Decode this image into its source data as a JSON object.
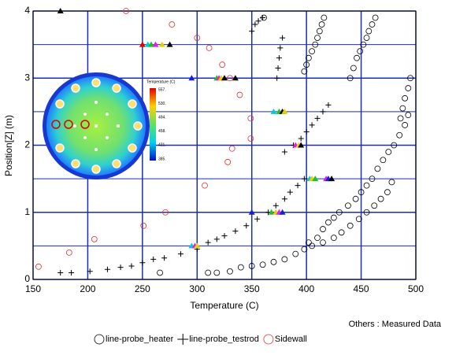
{
  "chart_data": {
    "type": "scatter",
    "x_label": "Temperature (C)",
    "y_label": "Position[Z] (m)",
    "xlim": [
      150,
      500
    ],
    "ylim": [
      0,
      4
    ],
    "xticks": [
      150,
      200,
      250,
      300,
      350,
      400,
      450,
      500
    ],
    "yticks": [
      0,
      1,
      2,
      3,
      4
    ],
    "minor_yticks": [
      0.5,
      1.5,
      2.5,
      3.5
    ],
    "grid": true,
    "grid_color": "#1a2fb0",
    "annotation": "Others : Measured Data",
    "series": [
      {
        "name": "line-probe_heater",
        "marker": "circle",
        "color": "#000000",
        "x": [
          266,
          310,
          318,
          330,
          340,
          350,
          360,
          370,
          380,
          390,
          398,
          405,
          415,
          425,
          432,
          440,
          448,
          455,
          462,
          468,
          474,
          478,
          402,
          410,
          415,
          420,
          425,
          430,
          438,
          445,
          450,
          455,
          460,
          465,
          470,
          475,
          480,
          485,
          490,
          493,
          361,
          416,
          414,
          412,
          410,
          408,
          405,
          402,
          400,
          398,
          463,
          460,
          457,
          455,
          452,
          449,
          446,
          443,
          440,
          495,
          493,
          490,
          488,
          486
        ],
        "values": [
          0.1,
          0.1,
          0.1,
          0.12,
          0.18,
          0.2,
          0.22,
          0.26,
          0.3,
          0.38,
          0.45,
          0.5,
          0.55,
          0.62,
          0.7,
          0.8,
          0.9,
          1.0,
          1.1,
          1.2,
          1.3,
          1.45,
          0.55,
          0.62,
          0.75,
          0.85,
          0.92,
          1.0,
          1.1,
          1.2,
          1.3,
          1.4,
          1.5,
          1.65,
          1.78,
          1.9,
          2.0,
          2.15,
          2.3,
          2.45,
          3.9,
          3.9,
          3.8,
          3.7,
          3.6,
          3.5,
          3.4,
          3.3,
          3.2,
          3.1,
          3.9,
          3.8,
          3.7,
          3.6,
          3.5,
          3.4,
          3.3,
          3.15,
          3.0,
          3.0,
          2.85,
          2.7,
          2.55,
          2.4
        ]
      },
      {
        "name": "line-probe_testrod",
        "marker": "plus",
        "color": "#000000",
        "x": [
          175,
          185,
          202,
          218,
          230,
          240,
          250,
          260,
          270,
          285,
          300,
          310,
          318,
          325,
          335,
          345,
          355,
          365,
          372,
          380,
          385,
          392,
          398,
          380,
          388,
          395,
          400,
          405,
          410,
          415,
          420,
          350,
          353,
          356,
          360,
          378,
          376,
          375,
          374,
          373
        ],
        "values": [
          0.1,
          0.1,
          0.12,
          0.15,
          0.18,
          0.2,
          0.25,
          0.3,
          0.32,
          0.38,
          0.45,
          0.55,
          0.6,
          0.65,
          0.72,
          0.8,
          0.9,
          1.0,
          1.1,
          1.2,
          1.3,
          1.4,
          1.5,
          1.9,
          2.0,
          2.1,
          2.2,
          2.3,
          2.4,
          2.5,
          2.6,
          3.7,
          3.8,
          3.85,
          3.9,
          3.6,
          3.45,
          3.3,
          3.15,
          3.0
        ]
      },
      {
        "name": "Sidewall",
        "marker": "circle",
        "color": "#e03030",
        "x": [
          155,
          183,
          206,
          251,
          271,
          307,
          328,
          332,
          349,
          349,
          339,
          330,
          323,
          311,
          300,
          277,
          235
        ],
        "values": [
          0.19,
          0.4,
          0.6,
          0.8,
          1.0,
          1.4,
          1.75,
          1.95,
          2.1,
          2.4,
          2.75,
          3.0,
          3.2,
          3.45,
          3.6,
          3.8,
          4.0
        ]
      }
    ],
    "measured": {
      "x": [
        175,
        250,
        255,
        258,
        262,
        268,
        275,
        295,
        318,
        320,
        322,
        325,
        335,
        370,
        375,
        378,
        380,
        390,
        393,
        395,
        403,
        405,
        408,
        418,
        420,
        423,
        350,
        368,
        372,
        375,
        378,
        295,
        298,
        300
      ],
      "values": [
        4.0,
        3.5,
        3.5,
        3.5,
        3.5,
        3.5,
        3.5,
        3.0,
        3.0,
        3.0,
        3.0,
        3.0,
        3.0,
        2.5,
        2.5,
        2.5,
        2.5,
        2.0,
        2.0,
        2.0,
        1.5,
        1.5,
        1.5,
        1.5,
        1.5,
        1.5,
        1.0,
        1.0,
        1.0,
        1.0,
        1.0,
        0.5,
        0.5,
        0.5
      ],
      "colors": [
        "#000000",
        "#e00000",
        "#00c8e8",
        "#20c020",
        "#e020e0",
        "#e8d000",
        "#000000",
        "#1020e0",
        "#20c020",
        "#e020e0",
        "#e8d000",
        "#000000",
        "#000000",
        "#00c8e8",
        "#20c020",
        "#000000",
        "#e8d000",
        "#e020e0",
        "#e8d000",
        "#000000",
        "#00c8e8",
        "#e8d000",
        "#20c020",
        "#e020e0",
        "#1020e0",
        "#000000",
        "#1020e0",
        "#20c020",
        "#e8d000",
        "#e020e0",
        "#1020e0",
        "#00c8e8",
        "#e020e0",
        "#e8d000"
      ]
    },
    "inset": {
      "title": "Temperature (C)",
      "labels": [
        "557.",
        "530.",
        "494.",
        "458.",
        "421.",
        "385."
      ]
    }
  }
}
